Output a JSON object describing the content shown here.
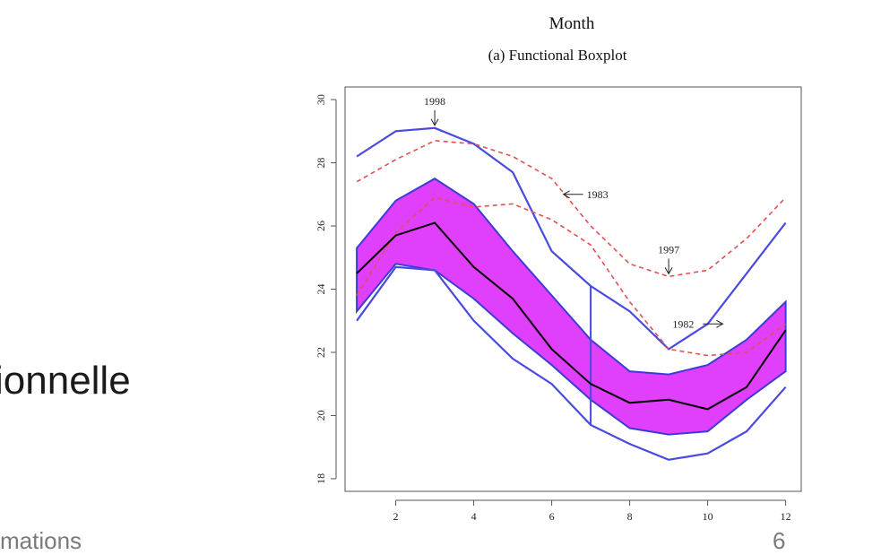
{
  "slide": {
    "partial_text": "ionnelle",
    "footer_text": "mations",
    "slide_number": "6"
  },
  "chart_data": {
    "type": "line",
    "title": "Month",
    "subtitle": "(a) Functional Boxplot",
    "xlabel": "",
    "ylabel": "",
    "xlim": [
      0.7,
      12.4
    ],
    "ylim": [
      17.6,
      30.4
    ],
    "x_ticks": [
      2,
      4,
      6,
      8,
      10,
      12
    ],
    "y_ticks": [
      18,
      20,
      22,
      24,
      26,
      28,
      30
    ],
    "grid": false,
    "legend": "none",
    "x": [
      1,
      2,
      3,
      4,
      5,
      6,
      7,
      8,
      9,
      10,
      11,
      12
    ],
    "band": {
      "color": "#e040fb",
      "upper": [
        25.3,
        26.8,
        27.5,
        26.7,
        25.2,
        23.8,
        22.4,
        21.4,
        21.3,
        21.6,
        22.4,
        23.6
      ],
      "lower": [
        23.3,
        24.8,
        24.6,
        23.7,
        22.6,
        21.6,
        20.5,
        19.6,
        19.4,
        19.5,
        20.5,
        21.4
      ]
    },
    "median": {
      "color": "#000000",
      "values": [
        24.5,
        25.7,
        26.1,
        24.7,
        23.7,
        22.1,
        21.0,
        20.4,
        20.5,
        20.2,
        20.9,
        22.7
      ]
    },
    "whiskers": {
      "color": "#4a4ae0",
      "upper": [
        28.2,
        29.0,
        29.1,
        28.6,
        27.7,
        25.2,
        24.1,
        23.3,
        22.1,
        22.9,
        24.5,
        26.1
      ],
      "lower": [
        23.0,
        24.7,
        24.6,
        23.0,
        21.8,
        21.0,
        19.7,
        19.1,
        18.6,
        18.8,
        19.5,
        20.9
      ],
      "vertical_x": 7,
      "vertical_range": [
        19.7,
        24.1
      ]
    },
    "outliers": {
      "color": "#e05050",
      "series": [
        {
          "values": [
            27.4,
            28.1,
            28.7,
            28.6,
            28.2,
            27.5,
            26.0,
            24.8,
            24.4,
            24.6,
            25.6,
            26.9
          ]
        },
        {
          "values": [
            23.8,
            25.8,
            26.9,
            26.6,
            26.7,
            26.2,
            25.4,
            23.6,
            22.1,
            21.9,
            22.0,
            22.9
          ]
        }
      ]
    },
    "annotations": [
      {
        "text": "1998",
        "x": 3,
        "y": 29.1,
        "arrow": "down"
      },
      {
        "text": "1983",
        "x": 6.3,
        "y": 27.0,
        "arrow": "left"
      },
      {
        "text": "1997",
        "x": 9.0,
        "y": 24.4,
        "arrow": "down"
      },
      {
        "text": "1982",
        "x": 9.1,
        "y": 22.9,
        "arrow": "right"
      }
    ]
  }
}
